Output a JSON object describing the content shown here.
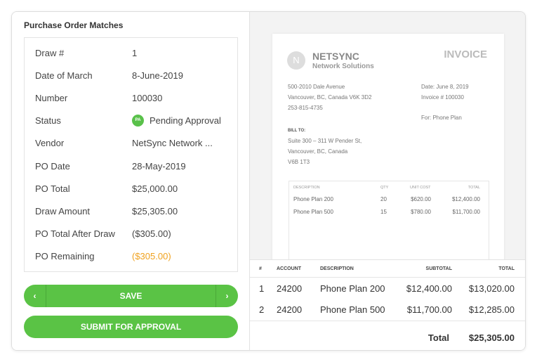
{
  "panel": {
    "title": "Purchase Order Matches",
    "fields": [
      {
        "label": "Draw #",
        "value": "1"
      },
      {
        "label": "Date of March",
        "value": "8-June-2019"
      },
      {
        "label": "Number",
        "value": "100030"
      },
      {
        "label": "Status",
        "value": "Pending Approval",
        "badge": "PA"
      },
      {
        "label": "Vendor",
        "value": "NetSync Network ..."
      },
      {
        "label": "PO Date",
        "value": "28-May-2019"
      },
      {
        "label": "PO Total",
        "value": "$25,000.00"
      },
      {
        "label": "Draw Amount",
        "value": "$25,305.00"
      },
      {
        "label": "PO Total After Draw",
        "value": "($305.00)"
      },
      {
        "label": "PO Remaining",
        "value": "($305.00)"
      }
    ]
  },
  "buttons": {
    "prev": "‹",
    "save": "SAVE",
    "next": "›",
    "submit": "SUBMIT FOR APPROVAL"
  },
  "invoice": {
    "logo_letter": "N",
    "company": "NETSYNC",
    "company_sub": "Network Solutions",
    "heading": "INVOICE",
    "address": [
      "500-2010 Dale Avenue",
      "Vancouver, BC, Canada V6K 3D2",
      "253-815-4735"
    ],
    "date": "Date: June 8, 2019",
    "number": "Invoice # 100030",
    "for": "For: Phone Plan",
    "bill_to_label": "BILL TO:",
    "bill_to": [
      "Suite 300 – 311 W Pender St,",
      "Vancouver, BC, Canada",
      "V6B 1T3"
    ],
    "columns": [
      "DESCRIPTION",
      "QTY",
      "UNIT COST",
      "TOTAL"
    ],
    "items": [
      [
        "Phone Plan 200",
        "20",
        "$620.00",
        "$12,400.00"
      ],
      [
        "Phone Plan 500",
        "15",
        "$780.00",
        "$11,700.00"
      ]
    ]
  },
  "table": {
    "columns": [
      "#",
      "ACCOUNT",
      "DESCRIPTION",
      "SUBTOTAL",
      "TOTAL"
    ],
    "rows": [
      [
        "1",
        "24200",
        "Phone Plan 200",
        "$12,400.00",
        "$13,020.00"
      ],
      [
        "2",
        "24200",
        "Phone Plan 500",
        "$11,700.00",
        "$12,285.00"
      ]
    ],
    "total_label": "Total",
    "total_value": "$25,305.00"
  },
  "colors": {
    "accent": "#5ac345",
    "warning": "#f0a21f"
  }
}
